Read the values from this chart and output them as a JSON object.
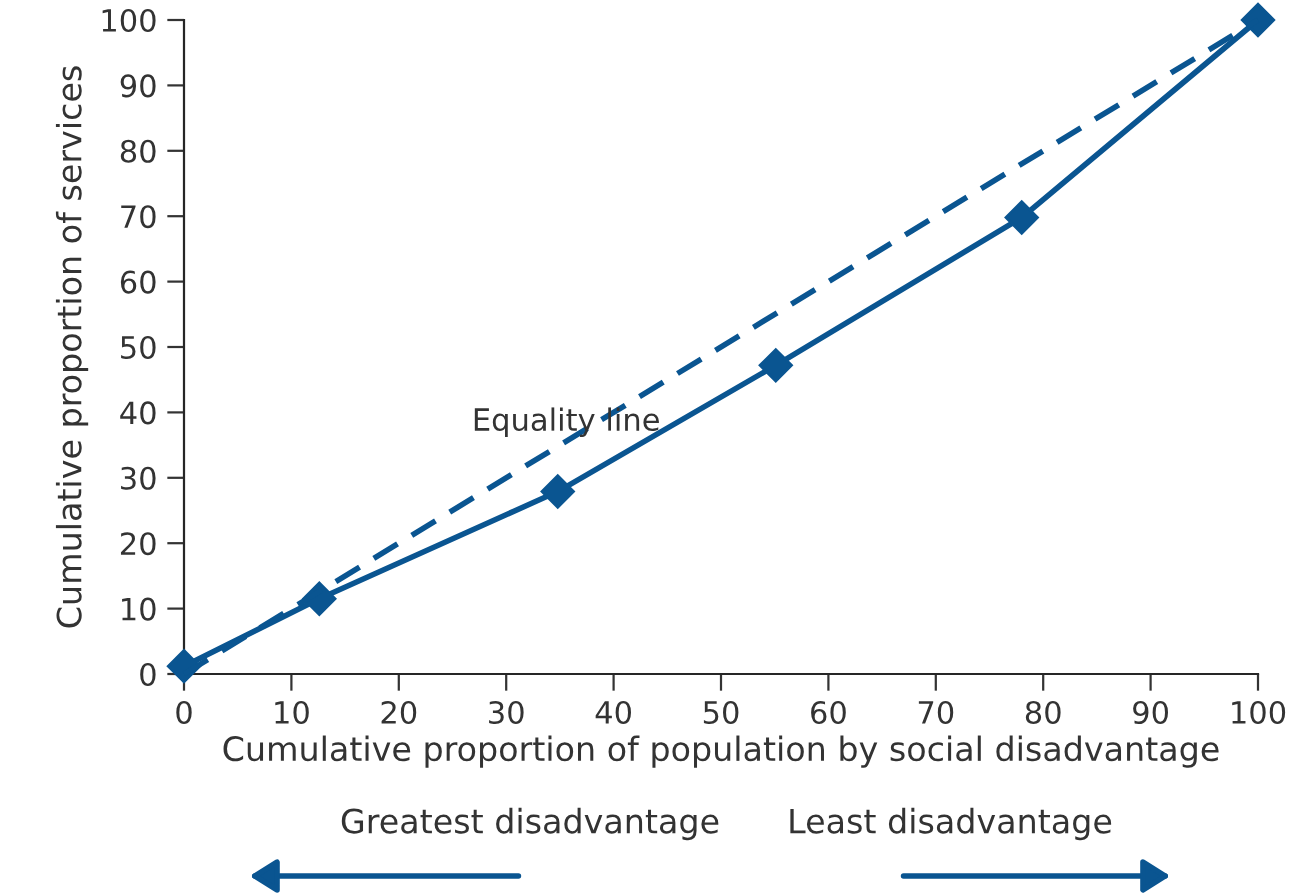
{
  "chart_data": {
    "type": "line",
    "xlabel": "Cumulative proportion of population by social disadvantage",
    "ylabel": "Cumulative proportion of services",
    "xlim": [
      0,
      100
    ],
    "ylim": [
      0,
      100
    ],
    "xticks": [
      0,
      10,
      20,
      30,
      40,
      50,
      60,
      70,
      80,
      90,
      100
    ],
    "yticks": [
      0,
      10,
      20,
      30,
      40,
      50,
      60,
      70,
      80,
      90,
      100
    ],
    "grid": false,
    "legend": false,
    "series": [
      {
        "x": [
          0,
          12.6,
          34.8,
          55.1,
          78,
          100
        ],
        "values": [
          1.2,
          11.5,
          27.9,
          47.2,
          69.8,
          100
        ],
        "color": "#0a5591",
        "marker": "diamond",
        "line_style": "solid"
      },
      {
        "x": [
          0,
          100
        ],
        "values": [
          0,
          100
        ],
        "color": "#0a5591",
        "marker": "none",
        "line_style": "dashed"
      }
    ],
    "annotations": [
      "Equality line",
      "Greatest disadvantage",
      "Least disadvantage"
    ]
  }
}
